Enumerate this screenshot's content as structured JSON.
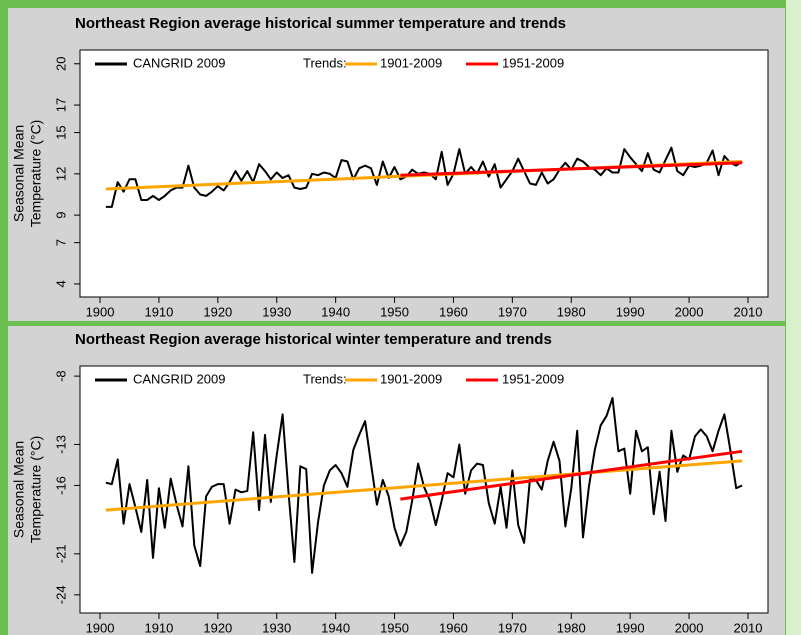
{
  "chart_data": [
    {
      "type": "line",
      "title": "Northeast Region  average historical summer temperature and trends",
      "ylabel": [
        "Seasonal Mean",
        "Temperature (°C)"
      ],
      "legend_title": "Trends:",
      "x": [
        1901,
        1902,
        1903,
        1904,
        1905,
        1906,
        1907,
        1908,
        1909,
        1910,
        1911,
        1912,
        1913,
        1914,
        1915,
        1916,
        1917,
        1918,
        1919,
        1920,
        1921,
        1922,
        1923,
        1924,
        1925,
        1926,
        1927,
        1928,
        1929,
        1930,
        1931,
        1932,
        1933,
        1934,
        1935,
        1936,
        1937,
        1938,
        1939,
        1940,
        1941,
        1942,
        1943,
        1944,
        1945,
        1946,
        1947,
        1948,
        1949,
        1950,
        1951,
        1952,
        1953,
        1954,
        1955,
        1956,
        1957,
        1958,
        1959,
        1960,
        1961,
        1962,
        1963,
        1964,
        1965,
        1966,
        1967,
        1968,
        1969,
        1970,
        1971,
        1972,
        1973,
        1974,
        1975,
        1976,
        1977,
        1978,
        1979,
        1980,
        1981,
        1982,
        1983,
        1984,
        1985,
        1986,
        1987,
        1988,
        1989,
        1990,
        1991,
        1992,
        1993,
        1994,
        1995,
        1996,
        1997,
        1998,
        1999,
        2000,
        2001,
        2002,
        2003,
        2004,
        2005,
        2006,
        2007,
        2008,
        2009
      ],
      "series": [
        {
          "name": "CANGRID 2009",
          "color": "#000000",
          "values": [
            9.6,
            9.6,
            11.4,
            10.7,
            11.6,
            11.6,
            10.1,
            10.1,
            10.4,
            10.1,
            10.4,
            10.8,
            11.0,
            11.0,
            12.6,
            11.0,
            10.5,
            10.4,
            10.7,
            11.1,
            10.8,
            11.4,
            12.2,
            11.5,
            12.2,
            11.4,
            12.7,
            12.2,
            11.6,
            12.1,
            11.7,
            11.9,
            11.0,
            10.9,
            11.0,
            12.0,
            11.9,
            12.1,
            12.0,
            11.7,
            13.0,
            12.9,
            11.6,
            12.4,
            12.6,
            12.4,
            11.2,
            12.9,
            11.7,
            12.5,
            11.6,
            11.8,
            12.3,
            12.0,
            12.1,
            12.0,
            11.6,
            13.6,
            11.2,
            12.0,
            13.8,
            12.0,
            12.5,
            12.0,
            12.9,
            11.8,
            12.7,
            11.0,
            11.6,
            12.2,
            13.1,
            12.2,
            11.3,
            11.2,
            12.1,
            11.3,
            11.6,
            12.3,
            12.8,
            12.3,
            13.1,
            12.9,
            12.5,
            12.3,
            11.9,
            12.4,
            12.1,
            12.1,
            13.8,
            13.2,
            12.7,
            12.2,
            13.5,
            12.3,
            12.1,
            13.0,
            13.9,
            12.2,
            11.9,
            12.6,
            12.5,
            12.6,
            12.8,
            13.7,
            11.9,
            13.3,
            12.8,
            12.6,
            12.9
          ]
        },
        {
          "name": "1901-2009",
          "color": "#ffa500",
          "x": [
            1901,
            2009
          ],
          "values": [
            10.9,
            12.9
          ]
        },
        {
          "name": "1951-2009",
          "color": "#ff0000",
          "x": [
            1951,
            2009
          ],
          "values": [
            11.9,
            12.8
          ]
        }
      ],
      "xlim": [
        1896.6,
        2013.4
      ],
      "xticks": [
        1900,
        1910,
        1920,
        1930,
        1940,
        1950,
        1960,
        1970,
        1980,
        1990,
        2000,
        2010
      ],
      "ylim": [
        3.05,
        21.0
      ],
      "yticks": [
        4,
        7,
        9,
        12,
        15,
        17,
        20
      ]
    },
    {
      "type": "line",
      "title": "Northeast Region  average historical winter temperature and trends",
      "ylabel": [
        "Seasonal Mean",
        "Temperature (°C)"
      ],
      "legend_title": "Trends:",
      "x": [
        1901,
        1902,
        1903,
        1904,
        1905,
        1906,
        1907,
        1908,
        1909,
        1910,
        1911,
        1912,
        1913,
        1914,
        1915,
        1916,
        1917,
        1918,
        1919,
        1920,
        1921,
        1922,
        1923,
        1924,
        1925,
        1926,
        1927,
        1928,
        1929,
        1930,
        1931,
        1932,
        1933,
        1934,
        1935,
        1936,
        1937,
        1938,
        1939,
        1940,
        1941,
        1942,
        1943,
        1944,
        1945,
        1946,
        1947,
        1948,
        1949,
        1950,
        1951,
        1952,
        1953,
        1954,
        1955,
        1956,
        1957,
        1958,
        1959,
        1960,
        1961,
        1962,
        1963,
        1964,
        1965,
        1966,
        1967,
        1968,
        1969,
        1970,
        1971,
        1972,
        1973,
        1974,
        1975,
        1976,
        1977,
        1978,
        1979,
        1980,
        1981,
        1982,
        1983,
        1984,
        1985,
        1986,
        1987,
        1988,
        1989,
        1990,
        1991,
        1992,
        1993,
        1994,
        1995,
        1996,
        1997,
        1998,
        1999,
        2000,
        2001,
        2002,
        2003,
        2004,
        2005,
        2006,
        2007,
        2008,
        2009
      ],
      "series": [
        {
          "name": "CANGRID 2009",
          "color": "#000000",
          "values": [
            -15.8,
            -15.9,
            -14.1,
            -18.8,
            -15.9,
            -17.6,
            -19.4,
            -15.6,
            -21.3,
            -16.2,
            -19.1,
            -15.5,
            -17.4,
            -19.0,
            -14.6,
            -20.4,
            -21.9,
            -16.8,
            -16.1,
            -15.9,
            -15.9,
            -18.8,
            -16.3,
            -16.5,
            -16.4,
            -12.1,
            -17.8,
            -12.3,
            -17.2,
            -13.8,
            -10.8,
            -16.5,
            -21.6,
            -14.6,
            -14.8,
            -22.4,
            -18.7,
            -16.0,
            -14.9,
            -14.5,
            -15.1,
            -16.1,
            -13.4,
            -12.3,
            -11.3,
            -14.4,
            -17.4,
            -15.6,
            -16.8,
            -19.1,
            -20.4,
            -19.4,
            -17.1,
            -14.4,
            -16.1,
            -17.1,
            -18.9,
            -17.1,
            -15.1,
            -15.4,
            -13.0,
            -16.6,
            -14.9,
            -14.4,
            -14.5,
            -17.3,
            -18.8,
            -16.1,
            -19.1,
            -14.9,
            -18.9,
            -20.2,
            -15.5,
            -15.6,
            -16.3,
            -14.2,
            -12.8,
            -14.2,
            -19.0,
            -16.2,
            -12.0,
            -19.8,
            -16.1,
            -13.4,
            -11.6,
            -10.9,
            -9.6,
            -13.5,
            -13.3,
            -16.6,
            -12.0,
            -13.5,
            -13.2,
            -18.1,
            -15.0,
            -18.6,
            -12.0,
            -15.0,
            -13.8,
            -14.1,
            -12.4,
            -11.9,
            -12.4,
            -13.5,
            -12.0,
            -10.8,
            -13.4,
            -16.2,
            -16.0
          ]
        },
        {
          "name": "1901-2009",
          "color": "#ffa500",
          "x": [
            1901,
            2009
          ],
          "values": [
            -17.8,
            -14.2
          ]
        },
        {
          "name": "1951-2009",
          "color": "#ff0000",
          "x": [
            1951,
            2009
          ],
          "values": [
            -17.0,
            -13.5
          ]
        }
      ],
      "xlim": [
        1896.6,
        2013.4
      ],
      "xticks": [
        1900,
        1910,
        1920,
        1930,
        1940,
        1950,
        1960,
        1970,
        1980,
        1990,
        2000,
        2010
      ],
      "ylim": [
        -25.33,
        -7.26
      ],
      "yticks": [
        -8,
        -13,
        -16,
        -21,
        -24
      ]
    }
  ]
}
